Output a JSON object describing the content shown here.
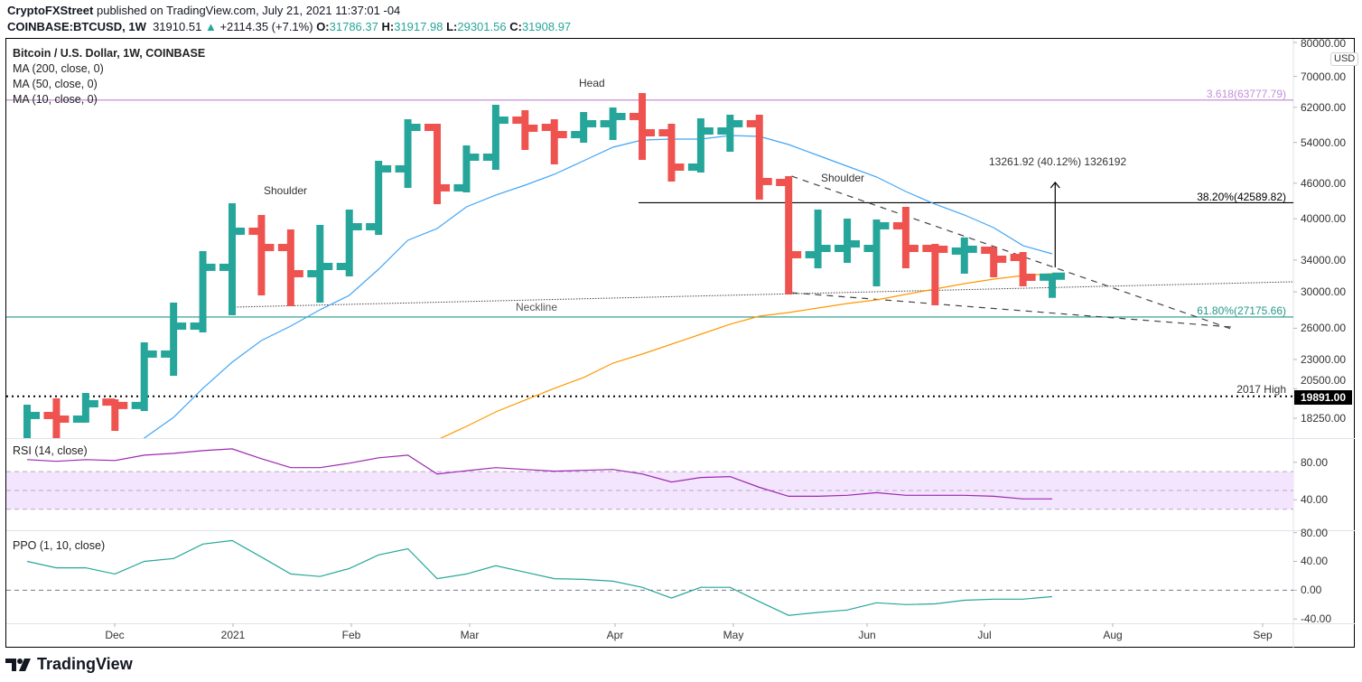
{
  "header": {
    "author": "CryptoFXStreet",
    "published": "published on TradingView.com, July 21, 2021 11:37:01 -04",
    "symbol": "COINBASE:BTCUSD, 1W",
    "last": "31910.51",
    "change_icon": "triangle-up-icon",
    "change": "+2114.35 (+7.1%)",
    "o_label": "O:",
    "o": "31786.37",
    "h_label": "H:",
    "h": "31917.98",
    "l_label": "L:",
    "l": "29301.56",
    "c_label": "C:",
    "c": "31908.97"
  },
  "legend": {
    "title": "Bitcoin / U.S. Dollar, 1W, COINBASE",
    "ma200": "MA (200, close, 0)",
    "ma50": "MA (50, close, 0)",
    "ma10": "MA (10, close, 0)",
    "rsi": "RSI (14, close)",
    "ppo": "PPO (1, 10, close)"
  },
  "price_axis": {
    "currency": "USD",
    "ticks": [
      "80000.00",
      "70000.00",
      "62000.00",
      "54000.00",
      "46000.00",
      "40000.00",
      "34000.00",
      "30000.00",
      "26000.00",
      "23000.00",
      "20500.00",
      "18250.00"
    ],
    "badge": "19891.00"
  },
  "rsi_axis": {
    "ticks": [
      "80.00",
      "40.00"
    ]
  },
  "ppo_axis": {
    "ticks": [
      "80.00",
      "40.00",
      "0.00",
      "-40.00"
    ]
  },
  "time_axis": {
    "ticks": [
      "Dec",
      "2021",
      "Feb",
      "Mar",
      "Apr",
      "May",
      "Jun",
      "Jul",
      "Aug",
      "Sep"
    ]
  },
  "annotations": {
    "head": "Head",
    "left_shoulder": "Shoulder",
    "right_shoulder": "Shoulder",
    "neckline": "Neckline",
    "fib_3618": "3.618(63777.79)",
    "fib_382": "38.20%(42589.82)",
    "fib_618": "61.80%(27175.66)",
    "high_2017": "2017 High",
    "measure": "13261.92 (40.12%) 1326192"
  },
  "footer": {
    "logo_text": "TradingView"
  },
  "colors": {
    "up": "#26a69a",
    "down": "#ef5350",
    "ma10": "#42a5f5",
    "ma50": "#ff9800",
    "rsi": "#9c27b0",
    "rsi_band": "#f3e5fd",
    "ppo": "#26a69a",
    "fib_3618": "#c48fd6",
    "fib_618": "#22998a",
    "fib_382": "#000000"
  },
  "chart_data": {
    "type": "ohlc",
    "title": "Bitcoin / U.S. Dollar, 1W, COINBASE",
    "y_scale": "log",
    "ylim": [
      16880,
      81430
    ],
    "grid": false,
    "dates": [
      "2020-11-16",
      "2020-11-23",
      "2020-11-30",
      "2020-12-07",
      "2020-12-14",
      "2020-12-21",
      "2020-12-28",
      "2021-01-04",
      "2021-01-11",
      "2021-01-18",
      "2021-01-25",
      "2021-02-01",
      "2021-02-08",
      "2021-02-15",
      "2021-02-22",
      "2021-03-01",
      "2021-03-08",
      "2021-03-15",
      "2021-03-22",
      "2021-03-29",
      "2021-04-05",
      "2021-04-12",
      "2021-04-19",
      "2021-04-26",
      "2021-05-03",
      "2021-05-10",
      "2021-05-17",
      "2021-05-24",
      "2021-05-31",
      "2021-06-07",
      "2021-06-14",
      "2021-06-21",
      "2021-06-28",
      "2021-07-05",
      "2021-07-12",
      "2021-07-19"
    ],
    "ohlc": [
      [
        16000,
        19250,
        15800,
        18450
      ],
      [
        18450,
        19740,
        16200,
        18190
      ],
      [
        18190,
        20160,
        17940,
        19320
      ],
      [
        19450,
        19670,
        17370,
        19190
      ],
      [
        19190,
        24600,
        18780,
        23490
      ],
      [
        23490,
        28760,
        21570,
        26220
      ],
      [
        26220,
        35220,
        25580,
        33040
      ],
      [
        33040,
        42510,
        27370,
        38080
      ],
      [
        38080,
        40590,
        29590,
        35720
      ],
      [
        35720,
        38350,
        28350,
        32220
      ],
      [
        32220,
        39040,
        28760,
        33150
      ],
      [
        33150,
        41470,
        31880,
        38760
      ],
      [
        38760,
        50240,
        37540,
        48660
      ],
      [
        48660,
        59150,
        45160,
        57290
      ],
      [
        57290,
        58110,
        42360,
        45160
      ],
      [
        45160,
        53360,
        44360,
        50950
      ],
      [
        50950,
        62610,
        48480,
        58940
      ],
      [
        58940,
        61290,
        52420,
        57090
      ],
      [
        57290,
        59150,
        49530,
        55680
      ],
      [
        55680,
        60850,
        53940,
        58110
      ],
      [
        58110,
        61950,
        54510,
        59790
      ],
      [
        59790,
        65570,
        50420,
        56080
      ],
      [
        56080,
        58110,
        46300,
        49000
      ],
      [
        49000,
        59360,
        47970,
        56480
      ],
      [
        56480,
        60210,
        52050,
        58110
      ],
      [
        58110,
        60210,
        43120,
        46300
      ],
      [
        46130,
        47290,
        29700,
        34720
      ],
      [
        34720,
        41470,
        32920,
        35590
      ],
      [
        35590,
        40020,
        33630,
        36230
      ],
      [
        35590,
        39880,
        30660,
        38900
      ],
      [
        38900,
        41910,
        32920,
        35590
      ],
      [
        35590,
        36230,
        28450,
        35470
      ],
      [
        35220,
        37150,
        32220,
        35470
      ],
      [
        35340,
        35720,
        31770,
        34110
      ],
      [
        34350,
        35090,
        30660,
        31770
      ],
      [
        31786.37,
        31917.98,
        29301.56,
        31908.97
      ]
    ],
    "ma10": [
      null,
      null,
      null,
      15500,
      16880,
      18320,
      20530,
      22750,
      24770,
      26220,
      27960,
      29590,
      32800,
      36750,
      38490,
      41910,
      43900,
      45640,
      47630,
      50240,
      52980,
      54510,
      54700,
      54700,
      55490,
      55290,
      53550,
      51320,
      49180,
      47130,
      44520,
      42360,
      40590,
      38620,
      35980,
      34840
    ],
    "ma50": [
      null,
      null,
      null,
      null,
      null,
      null,
      null,
      null,
      null,
      null,
      null,
      null,
      null,
      15900,
      16760,
      17680,
      18710,
      19600,
      20530,
      21420,
      22670,
      23490,
      24420,
      25400,
      26420,
      27270,
      27660,
      28150,
      28660,
      29070,
      29700,
      30340,
      30990,
      31540,
      31990,
      32220
    ],
    "levels": [
      {
        "label_key": "fib_3618",
        "price": 63777.79,
        "from_bar": null,
        "style": "solid"
      },
      {
        "label_key": "fib_382",
        "price": 42589.82,
        "from_bar": 21,
        "style": "solid"
      },
      {
        "label_key": "fib_618",
        "price": 27175.66,
        "from_bar": null,
        "style": "solid"
      },
      {
        "label_key": "high_2017",
        "price": 19891.0,
        "from_bar": null,
        "style": "dotted"
      }
    ],
    "trendlines": [
      {
        "name": "neckline",
        "from": [
          7,
          28250
        ],
        "to": [
          43.2,
          31210
        ],
        "style": "dotted"
      },
      {
        "name": "upper-wedge",
        "from": [
          26.1,
          47290
        ],
        "to": [
          41.1,
          25940
        ],
        "style": "dashed"
      },
      {
        "name": "lower-wedge",
        "from": [
          26.1,
          29900
        ],
        "to": [
          41.1,
          26130
        ],
        "style": "dashed"
      }
    ],
    "measure_arrow": {
      "bar": 35.1,
      "from": 33040,
      "to": 46130
    },
    "rsi": {
      "ylim": [
        7.6,
        104.8
      ],
      "band": [
        30,
        70
      ],
      "mid": 50,
      "values": [
        82.9,
        81,
        82.9,
        81.9,
        87.6,
        89.5,
        92.4,
        94.3,
        83.8,
        74.3,
        74.3,
        79,
        84.8,
        87.6,
        67.6,
        71,
        74.3,
        72.4,
        70.5,
        71.4,
        72.4,
        67.6,
        59,
        63.8,
        64.8,
        53.3,
        43.8,
        43.8,
        44.8,
        47.6,
        44.8,
        44.8,
        44.8,
        43.8,
        41,
        41
      ]
    },
    "ppo": {
      "ylim": [
        -46,
        82
      ],
      "zero": 0,
      "values": [
        40,
        31,
        31,
        22.5,
        40,
        44,
        64,
        69,
        46,
        22.5,
        19,
        30,
        49,
        57.5,
        16,
        22.5,
        34,
        25,
        16,
        15,
        12.5,
        4,
        -11,
        4,
        4,
        -16,
        -35,
        -31,
        -27.5,
        -17.5,
        -20,
        -19,
        -14,
        -12.5,
        -12.5,
        -9
      ]
    }
  }
}
